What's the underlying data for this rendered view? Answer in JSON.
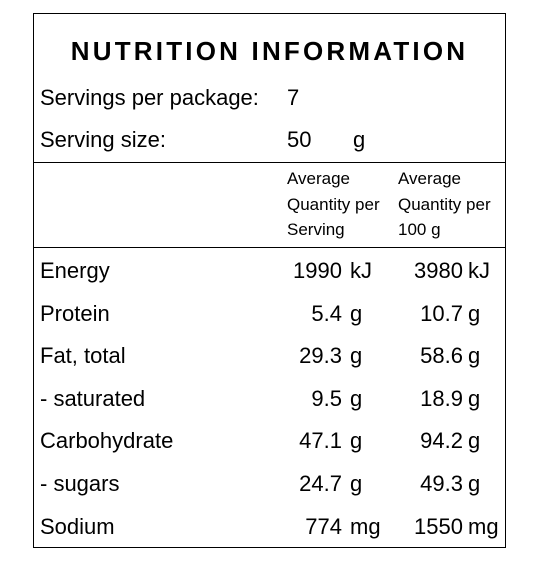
{
  "title": "NUTRITION INFORMATION",
  "servings": {
    "label": "Servings per package:",
    "value": "7"
  },
  "serving_size": {
    "label": "Serving size:",
    "value": "50",
    "unit": "g"
  },
  "columns": {
    "per_serving": [
      "Average",
      "Quantity per",
      "Serving"
    ],
    "per_100g": [
      "Average",
      "Quantity per",
      "100 g"
    ]
  },
  "rows": [
    {
      "name": "Energy",
      "serving": "1990",
      "serving_unit": "kJ",
      "per100": "3980",
      "per100_unit": "kJ"
    },
    {
      "name": "Protein",
      "serving": "5.4",
      "serving_unit": "g",
      "per100": "10.7",
      "per100_unit": "g"
    },
    {
      "name": "Fat, total",
      "serving": "29.3",
      "serving_unit": "g",
      "per100": "58.6",
      "per100_unit": "g"
    },
    {
      "name": "- saturated",
      "serving": "9.5",
      "serving_unit": "g",
      "per100": "18.9",
      "per100_unit": "g"
    },
    {
      "name": "Carbohydrate",
      "serving": "47.1",
      "serving_unit": "g",
      "per100": "94.2",
      "per100_unit": "g"
    },
    {
      "name": "- sugars",
      "serving": "24.7",
      "serving_unit": "g",
      "per100": "49.3",
      "per100_unit": "g"
    },
    {
      "name": "Sodium",
      "serving": "774",
      "serving_unit": "mg",
      "per100": "1550",
      "per100_unit": "mg"
    }
  ]
}
